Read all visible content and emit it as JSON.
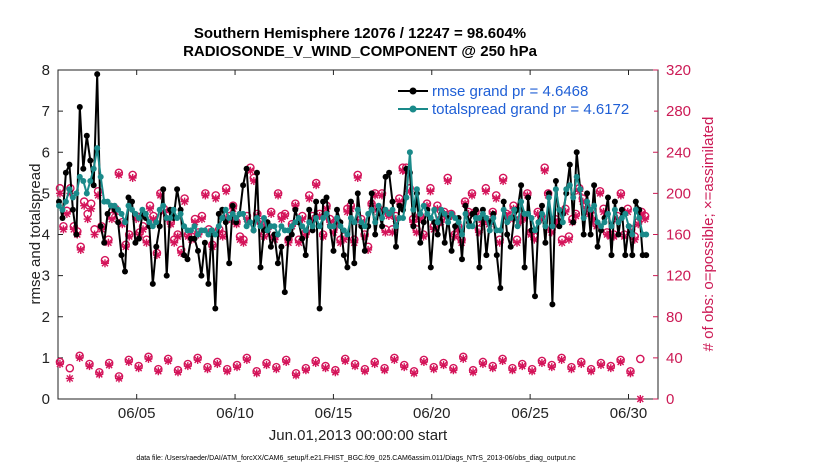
{
  "chart_data": {
    "type": "line",
    "title_line1": "Southern Hemisphere 12076 / 12247 = 98.604%",
    "title_line2": "RADIOSONDE_V_WIND_COMPONENT @ 250 hPa",
    "ylabel_left": "rmse and totalspread",
    "ylabel_right": "# of obs: o=possible; ×=assimilated",
    "xlabel": "Jun.01,2013 00:00:00 start",
    "footer": "data file: /Users/raeder/DAI/ATM_forcXX/CAM6_setup/f.e21.FHIST_BGC.f09_025.CAM6assim.011/Diags_NTrS_2013-06/obs_diag_output.nc",
    "x_range": [
      1,
      31.5
    ],
    "ylim_left": [
      0,
      8
    ],
    "ylim_right": [
      0,
      320
    ],
    "left_ticks": [
      "0",
      "1",
      "2",
      "3",
      "4",
      "5",
      "6",
      "7",
      "8"
    ],
    "right_ticks": [
      "0",
      "40",
      "80",
      "120",
      "160",
      "200",
      "240",
      "280",
      "320"
    ],
    "x_ticks": [
      {
        "day": 5,
        "label": "06/05"
      },
      {
        "day": 10,
        "label": "06/10"
      },
      {
        "day": 15,
        "label": "06/15"
      },
      {
        "day": 20,
        "label": "06/20"
      },
      {
        "day": 25,
        "label": "06/25"
      },
      {
        "day": 30,
        "label": "06/30"
      }
    ],
    "colors": {
      "rmse": "#000000",
      "spread": "#1a8a8a",
      "obs": "#d4145a",
      "legend_text": "#1f5fd6",
      "right_axis": "#cc1a55"
    },
    "series": [
      {
        "name": "rmse grand pr = 4.6468",
        "values": [
          4.8,
          4.4,
          5.5,
          5.7,
          4.6,
          4.0,
          7.1,
          5.6,
          6.4,
          5.8,
          5.2,
          7.9,
          4.2,
          3.8,
          4.5,
          4.7,
          4.6,
          4.3,
          3.5,
          3.1,
          4.9,
          4.8,
          3.8,
          3.9,
          4.5,
          4.4,
          4.2,
          2.8,
          3.7,
          4.2,
          5.1,
          3.0,
          4.6,
          4.4,
          5.1,
          4.6,
          3.5,
          3.4,
          3.9,
          3.9,
          3.6,
          3.0,
          3.8,
          2.8,
          4.1,
          2.2,
          4.5,
          4.6,
          4.3,
          3.3,
          4.7,
          4.3,
          4.5,
          5.2,
          5.6,
          4.3,
          4.1,
          5.5,
          3.2,
          4.1,
          4.3,
          3.7,
          4.0,
          3.3,
          3.7,
          2.6,
          3.9,
          4.0,
          4.6,
          4.3,
          3.9,
          3.5,
          4.6,
          4.1,
          4.8,
          2.2,
          4.8,
          4.9,
          4.2,
          3.6,
          4.6,
          4.3,
          3.5,
          3.2,
          4.8,
          3.3,
          5.0,
          4.2,
          3.6,
          4.2,
          5.0,
          4.0,
          4.6,
          4.2,
          5.4,
          5.5,
          4.8,
          3.7,
          4.7,
          4.6,
          5.6,
          5.5,
          4.2,
          5.0,
          3.8,
          4.3,
          4.6,
          3.2,
          4.3,
          4.0,
          4.5,
          3.8,
          4.4,
          3.6,
          4.2,
          4.4,
          3.4,
          4.7,
          4.3,
          4.5,
          4.6,
          3.2,
          4.6,
          3.5,
          4.3,
          4.5,
          3.5,
          2.7,
          4.8,
          4.0,
          3.7,
          4.4,
          4.6,
          5.2,
          3.2,
          4.9,
          4.1,
          2.5,
          4.3,
          4.7,
          3.8,
          5.0,
          2.3,
          5.3,
          4.2,
          4.5,
          5.0,
          5.7,
          4.3,
          6.0,
          5.1,
          4.0,
          5.0,
          4.0,
          5.2,
          3.7,
          4.1,
          4.4,
          4.9,
          3.5,
          4.8,
          4.0,
          4.6,
          3.5,
          4.2,
          3.5,
          4.8,
          4.6,
          3.5,
          3.5
        ]
      },
      {
        "name": "totalspread grand pr = 4.6172",
        "values": [
          4.7,
          4.6,
          4.8,
          5.1,
          4.9,
          5.0,
          5.4,
          5.3,
          5.0,
          5.3,
          5.6,
          6.1,
          5.4,
          4.8,
          4.8,
          4.7,
          4.7,
          4.6,
          4.5,
          4.3,
          4.7,
          4.6,
          4.5,
          4.4,
          4.6,
          4.5,
          4.3,
          4.2,
          4.3,
          4.6,
          4.7,
          4.4,
          4.4,
          4.6,
          4.4,
          4.5,
          4.2,
          4.1,
          4.1,
          4.2,
          4.0,
          4.1,
          4.1,
          4.0,
          4.1,
          4.0,
          4.2,
          4.4,
          4.6,
          4.4,
          4.5,
          4.4,
          4.5,
          4.5,
          4.2,
          4.3,
          4.1,
          4.4,
          4.2,
          4.4,
          4.1,
          4.2,
          4.2,
          4.0,
          4.2,
          4.1,
          4.1,
          4.2,
          4.3,
          4.4,
          4.2,
          4.1,
          4.3,
          4.2,
          4.4,
          4.2,
          4.4,
          4.5,
          4.2,
          4.2,
          4.4,
          4.2,
          4.1,
          4.0,
          4.4,
          4.3,
          4.6,
          4.3,
          4.2,
          4.5,
          4.6,
          4.3,
          4.7,
          4.4,
          4.6,
          4.5,
          4.6,
          4.2,
          4.4,
          4.4,
          4.9,
          6.0,
          4.6,
          5.1,
          4.5,
          4.7,
          4.5,
          4.4,
          4.6,
          4.3,
          4.6,
          4.5,
          4.3,
          4.5,
          4.4,
          4.3,
          4.0,
          4.5,
          4.2,
          4.2,
          4.4,
          4.4,
          4.5,
          4.4,
          4.1,
          4.4,
          4.1,
          4.1,
          4.6,
          4.3,
          4.4,
          4.6,
          4.2,
          4.8,
          4.5,
          4.5,
          4.4,
          4.1,
          4.3,
          4.5,
          4.2,
          4.9,
          4.2,
          5.1,
          4.6,
          4.3,
          5.1,
          5.2,
          4.9,
          5.4,
          5.1,
          4.4,
          4.8,
          4.6,
          4.7,
          4.3,
          4.2,
          4.3,
          4.5,
          4.2,
          4.6,
          4.3,
          4.4,
          4.5,
          4.2,
          4.0,
          4.6,
          4.4,
          4.0,
          4.0
        ]
      }
    ],
    "obs_possible": [
      205,
      168,
      183,
      205,
      168,
      163,
      148,
      192,
      180,
      190,
      165,
      202,
      168,
      135,
      155,
      178,
      185,
      220,
      172,
      150,
      160,
      218,
      178,
      162,
      168,
      155,
      188,
      178,
      142,
      200,
      185,
      178,
      172,
      155,
      160,
      145,
      195,
      160,
      158,
      175,
      162,
      178,
      200,
      165,
      150,
      198,
      165,
      160,
      205,
      178,
      188,
      172,
      158,
      155,
      178,
      225,
      215,
      180,
      172,
      160,
      168,
      182,
      158,
      200,
      178,
      180,
      155,
      170,
      190,
      155,
      178,
      162,
      198,
      178,
      210,
      180,
      160,
      188,
      175,
      165,
      172,
      155,
      158,
      185,
      188,
      155,
      218,
      175,
      160,
      148,
      190,
      200,
      185,
      200,
      165,
      180,
      165,
      178,
      195,
      225,
      225,
      205,
      175,
      165,
      178,
      160,
      190,
      205,
      168,
      188,
      175,
      182,
      215,
      180,
      160,
      168,
      155,
      192,
      182,
      200,
      182,
      165,
      175,
      205,
      172,
      182,
      198,
      155,
      215,
      180,
      178,
      188,
      155,
      175,
      178,
      200,
      162,
      158,
      182,
      178,
      225,
      200,
      165,
      175,
      172,
      155,
      185,
      158,
      175,
      180,
      205,
      195,
      188,
      182,
      178,
      170,
      202,
      185,
      162,
      160,
      160,
      178,
      200,
      160,
      185,
      165,
      158,
      172,
      182,
      178
    ],
    "obs_assimilated": [
      200,
      165,
      180,
      200,
      165,
      160,
      145,
      188,
      175,
      185,
      160,
      198,
      165,
      132,
      152,
      175,
      182,
      218,
      170,
      148,
      158,
      215,
      175,
      160,
      165,
      152,
      185,
      175,
      140,
      198,
      182,
      175,
      170,
      152,
      158,
      142,
      192,
      158,
      155,
      172,
      160,
      175,
      198,
      162,
      148,
      195,
      162,
      158,
      202,
      175,
      185,
      170,
      155,
      152,
      175,
      222,
      212,
      178,
      170,
      158,
      165,
      180,
      155,
      198,
      175,
      178,
      152,
      168,
      188,
      152,
      175,
      160,
      195,
      175,
      208,
      178,
      158,
      185,
      172,
      162,
      170,
      152,
      155,
      182,
      185,
      152,
      215,
      172,
      158,
      145,
      188,
      198,
      182,
      198,
      162,
      178,
      162,
      175,
      192,
      222,
      222,
      202,
      172,
      162,
      175,
      158,
      188,
      202,
      165,
      185,
      172,
      180,
      212,
      178,
      158,
      165,
      152,
      190,
      180,
      198,
      180,
      162,
      172,
      202,
      170,
      180,
      195,
      152,
      212,
      178,
      175,
      185,
      152,
      172,
      175,
      198,
      160,
      155,
      180,
      175,
      222,
      198,
      162,
      172,
      170,
      152,
      182,
      155,
      172,
      178,
      202,
      192,
      185,
      180,
      175,
      168,
      200,
      182,
      160,
      158,
      158,
      175,
      198,
      158,
      182,
      162,
      155,
      170,
      180,
      175
    ],
    "obs_low_possible": [
      36,
      30,
      42,
      34,
      26,
      35,
      22,
      38,
      32,
      41,
      29,
      39,
      28,
      34,
      40,
      31,
      36,
      29,
      33,
      40,
      27,
      35,
      31,
      38,
      25,
      30,
      37,
      32,
      28,
      39,
      34,
      29,
      36,
      30,
      40,
      33,
      27,
      38,
      31,
      35,
      30,
      41,
      28,
      36,
      32,
      39,
      30,
      34,
      29,
      37,
      33,
      40,
      31,
      36,
      29,
      35,
      32,
      38,
      27,
      39
    ],
    "obs_low_assimilated": [
      34,
      20,
      40,
      32,
      24,
      33,
      20,
      36,
      30,
      39,
      27,
      37,
      26,
      32,
      38,
      29,
      34,
      27,
      31,
      38,
      25,
      33,
      29,
      36,
      23,
      28,
      35,
      30,
      26,
      37,
      32,
      27,
      34,
      28,
      38,
      31,
      25,
      36,
      29,
      33,
      28,
      39,
      26,
      34,
      30,
      37,
      28,
      32,
      27,
      35,
      31,
      38,
      29,
      34,
      27,
      33,
      30,
      36,
      25,
      0
    ]
  }
}
